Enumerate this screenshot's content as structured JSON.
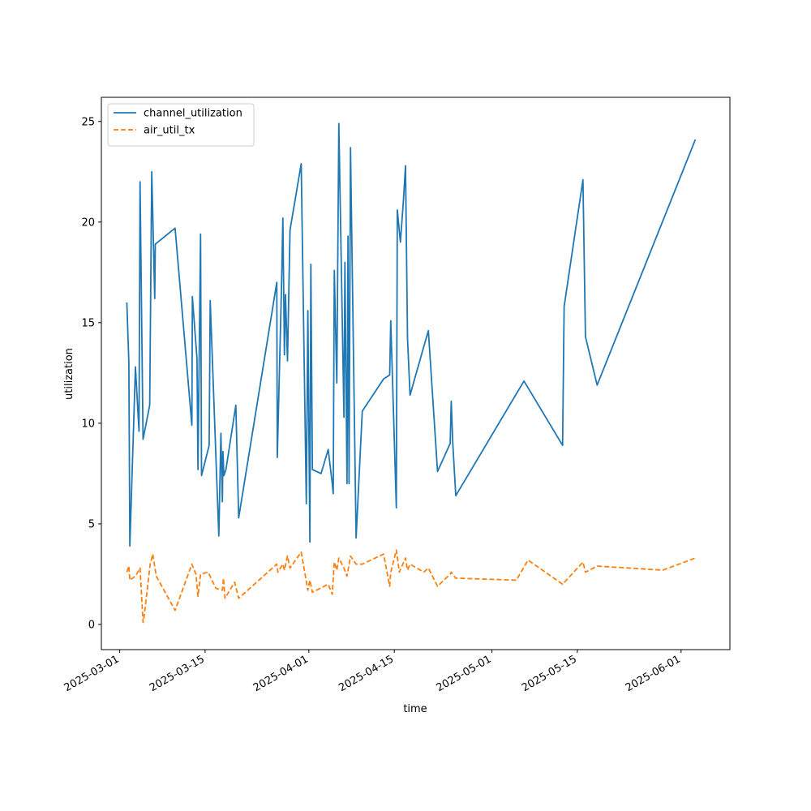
{
  "chart_data": {
    "type": "line",
    "title": "",
    "xlabel": "time",
    "ylabel": "utilization",
    "x_axis_type": "date",
    "xlim": [
      "2025-02-26",
      "2025-06-09"
    ],
    "ylim": [
      -1.25,
      26.2
    ],
    "x_ticks": [
      "2025-03-01",
      "2025-03-15",
      "2025-04-01",
      "2025-04-15",
      "2025-05-01",
      "2025-05-15",
      "2025-06-01"
    ],
    "y_ticks": [
      0,
      5,
      10,
      15,
      20,
      25
    ],
    "grid": false,
    "legend_position": "top-left",
    "series": [
      {
        "name": "channel_utilization",
        "color": "#1f77b4",
        "line_style": "solid",
        "points": [
          [
            "2025-03-02 04:00",
            16.0
          ],
          [
            "2025-03-02 12:00",
            13.0
          ],
          [
            "2025-03-02 16:00",
            3.9
          ],
          [
            "2025-03-03 14:00",
            12.8
          ],
          [
            "2025-03-04 04:00",
            9.6
          ],
          [
            "2025-03-04 08:00",
            22.0
          ],
          [
            "2025-03-04 20:00",
            9.2
          ],
          [
            "2025-03-05 22:00",
            10.9
          ],
          [
            "2025-03-06 06:00",
            22.5
          ],
          [
            "2025-03-06 18:00",
            16.2
          ],
          [
            "2025-03-06 20:00",
            18.9
          ],
          [
            "2025-03-10 02:00",
            19.7
          ],
          [
            "2025-03-12 20:00",
            9.9
          ],
          [
            "2025-03-12 22:00",
            16.3
          ],
          [
            "2025-03-13 16:00",
            13.2
          ],
          [
            "2025-03-13 20:00",
            7.7
          ],
          [
            "2025-03-14 06:00",
            19.4
          ],
          [
            "2025-03-14 10:00",
            7.4
          ],
          [
            "2025-03-15 16:00",
            8.9
          ],
          [
            "2025-03-15 20:00",
            16.1
          ],
          [
            "2025-03-17 06:00",
            4.4
          ],
          [
            "2025-03-17 14:00",
            9.5
          ],
          [
            "2025-03-17 20:00",
            6.1
          ],
          [
            "2025-03-17 22:00",
            8.6
          ],
          [
            "2025-03-18 02:00",
            7.4
          ],
          [
            "2025-03-18 10:00",
            7.7
          ],
          [
            "2025-03-20 01:00",
            10.9
          ],
          [
            "2025-03-20 12:00",
            5.3
          ],
          [
            "2025-03-26 18:00",
            17.0
          ],
          [
            "2025-03-26 20:00",
            8.3
          ],
          [
            "2025-03-27 12:00",
            16.6
          ],
          [
            "2025-03-27 18:00",
            20.2
          ],
          [
            "2025-03-28 00:00",
            13.4
          ],
          [
            "2025-03-28 04:00",
            16.4
          ],
          [
            "2025-03-28 12:00",
            13.1
          ],
          [
            "2025-03-28 22:00",
            19.6
          ],
          [
            "2025-03-30 18:00",
            22.9
          ],
          [
            "2025-03-31 14:00",
            6.0
          ],
          [
            "2025-03-31 20:00",
            15.6
          ],
          [
            "2025-04-01 04:00",
            4.1
          ],
          [
            "2025-04-01 08:00",
            17.9
          ],
          [
            "2025-04-01 14:00",
            7.7
          ],
          [
            "2025-04-03 00:00",
            7.5
          ],
          [
            "2025-04-04 04:00",
            8.7
          ],
          [
            "2025-04-04 20:00",
            7.0
          ],
          [
            "2025-04-05 00:00",
            6.5
          ],
          [
            "2025-04-05 04:00",
            17.6
          ],
          [
            "2025-04-05 14:00",
            12.0
          ],
          [
            "2025-04-05 22:00",
            24.9
          ],
          [
            "2025-04-06 18:00",
            10.3
          ],
          [
            "2025-04-06 22:00",
            18.0
          ],
          [
            "2025-04-07 06:00",
            7.0
          ],
          [
            "2025-04-07 10:00",
            19.3
          ],
          [
            "2025-04-07 14:00",
            7.0
          ],
          [
            "2025-04-07 20:00",
            23.7
          ],
          [
            "2025-04-08 18:00",
            4.3
          ],
          [
            "2025-04-09 18:00",
            10.6
          ],
          [
            "2025-04-13 06:00",
            12.2
          ],
          [
            "2025-04-14 06:00",
            12.4
          ],
          [
            "2025-04-14 10:00",
            15.1
          ],
          [
            "2025-04-15 08:00",
            5.8
          ],
          [
            "2025-04-15 12:00",
            20.6
          ],
          [
            "2025-04-16 00:00",
            19.0
          ],
          [
            "2025-04-16 12:00",
            21.1
          ],
          [
            "2025-04-16 20:00",
            22.8
          ],
          [
            "2025-04-17 04:00",
            14.2
          ],
          [
            "2025-04-17 14:00",
            11.4
          ],
          [
            "2025-04-19 20:00",
            13.8
          ],
          [
            "2025-04-20 14:00",
            14.6
          ],
          [
            "2025-04-22 02:00",
            7.6
          ],
          [
            "2025-04-24 04:00",
            9.0
          ],
          [
            "2025-04-24 08:00",
            11.1
          ],
          [
            "2025-04-24 14:00",
            9.0
          ],
          [
            "2025-04-25 02:00",
            6.4
          ],
          [
            "2025-05-06 06:00",
            12.1
          ],
          [
            "2025-05-12 14:00",
            8.9
          ],
          [
            "2025-05-12 20:00",
            15.8
          ],
          [
            "2025-05-15 22:00",
            22.1
          ],
          [
            "2025-05-16 08:00",
            14.3
          ],
          [
            "2025-05-18 06:00",
            11.9
          ],
          [
            "2025-06-03 08:00",
            24.1
          ]
        ]
      },
      {
        "name": "air_util_tx",
        "color": "#ff7f0e",
        "line_style": "dashed",
        "points": [
          [
            "2025-03-02 04:00",
            2.6
          ],
          [
            "2025-03-02 12:00",
            2.9
          ],
          [
            "2025-03-02 16:00",
            2.2
          ],
          [
            "2025-03-03 14:00",
            2.4
          ],
          [
            "2025-03-04 08:00",
            2.8
          ],
          [
            "2025-03-04 20:00",
            0.1
          ],
          [
            "2025-03-05 00:00",
            0.4
          ],
          [
            "2025-03-06 00:00",
            3.0
          ],
          [
            "2025-03-06 10:00",
            3.5
          ],
          [
            "2025-03-07 00:00",
            2.4
          ],
          [
            "2025-03-10 02:00",
            0.7
          ],
          [
            "2025-03-12 20:00",
            3.0
          ],
          [
            "2025-03-13 12:00",
            2.5
          ],
          [
            "2025-03-13 20:00",
            1.4
          ],
          [
            "2025-03-14 06:00",
            2.5
          ],
          [
            "2025-03-15 12:00",
            2.6
          ],
          [
            "2025-03-16 18:00",
            1.8
          ],
          [
            "2025-03-17 20:00",
            1.7
          ],
          [
            "2025-03-18 00:00",
            2.3
          ],
          [
            "2025-03-18 06:00",
            1.3
          ],
          [
            "2025-03-19 20:00",
            2.1
          ],
          [
            "2025-03-20 12:00",
            1.3
          ],
          [
            "2025-03-26 18:00",
            3.0
          ],
          [
            "2025-03-26 22:00",
            2.6
          ],
          [
            "2025-03-27 18:00",
            3.0
          ],
          [
            "2025-03-28 00:00",
            2.7
          ],
          [
            "2025-03-28 12:00",
            3.4
          ],
          [
            "2025-03-28 22:00",
            2.8
          ],
          [
            "2025-03-30 18:00",
            3.6
          ],
          [
            "2025-03-31 20:00",
            1.7
          ],
          [
            "2025-04-01 04:00",
            2.2
          ],
          [
            "2025-04-01 14:00",
            1.6
          ],
          [
            "2025-04-04 04:00",
            2.0
          ],
          [
            "2025-04-04 20:00",
            1.5
          ],
          [
            "2025-04-05 04:00",
            3.1
          ],
          [
            "2025-04-05 14:00",
            2.7
          ],
          [
            "2025-04-05 22:00",
            3.3
          ],
          [
            "2025-04-06 18:00",
            2.8
          ],
          [
            "2025-04-07 06:00",
            2.4
          ],
          [
            "2025-04-07 20:00",
            3.4
          ],
          [
            "2025-04-08 18:00",
            3.0
          ],
          [
            "2025-04-09 18:00",
            3.0
          ],
          [
            "2025-04-13 06:00",
            3.5
          ],
          [
            "2025-04-14 06:00",
            1.9
          ],
          [
            "2025-04-14 10:00",
            2.6
          ],
          [
            "2025-04-15 08:00",
            3.7
          ],
          [
            "2025-04-15 20:00",
            2.6
          ],
          [
            "2025-04-16 20:00",
            3.3
          ],
          [
            "2025-04-17 04:00",
            2.7
          ],
          [
            "2025-04-17 14:00",
            3.0
          ],
          [
            "2025-04-19 20:00",
            2.6
          ],
          [
            "2025-04-20 14:00",
            2.8
          ],
          [
            "2025-04-22 02:00",
            1.9
          ],
          [
            "2025-04-24 04:00",
            2.5
          ],
          [
            "2025-04-24 08:00",
            2.6
          ],
          [
            "2025-04-25 02:00",
            2.3
          ],
          [
            "2025-05-05 00:00",
            2.2
          ],
          [
            "2025-05-06 22:00",
            3.2
          ],
          [
            "2025-05-12 14:00",
            2.0
          ],
          [
            "2025-05-15 22:00",
            3.1
          ],
          [
            "2025-05-16 08:00",
            2.6
          ],
          [
            "2025-05-18 06:00",
            2.9
          ],
          [
            "2025-05-29 00:00",
            2.7
          ],
          [
            "2025-06-03 08:00",
            3.3
          ]
        ]
      }
    ]
  }
}
